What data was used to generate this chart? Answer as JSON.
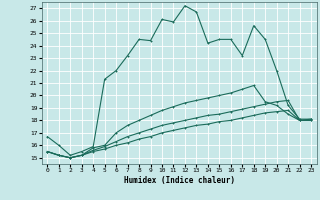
{
  "xlabel": "Humidex (Indice chaleur)",
  "bg_color": "#c8e8e8",
  "grid_color": "#ffffff",
  "line_color": "#1a6b5a",
  "xlim": [
    -0.5,
    23.5
  ],
  "ylim": [
    14.5,
    27.5
  ],
  "xticks": [
    0,
    1,
    2,
    3,
    4,
    5,
    6,
    7,
    8,
    9,
    10,
    11,
    12,
    13,
    14,
    15,
    16,
    17,
    18,
    19,
    20,
    21,
    22,
    23
  ],
  "yticks": [
    15,
    16,
    17,
    18,
    19,
    20,
    21,
    22,
    23,
    24,
    25,
    26,
    27
  ],
  "line1_y": [
    16.7,
    16.0,
    15.2,
    15.5,
    15.9,
    21.3,
    22.0,
    23.2,
    24.5,
    24.4,
    26.1,
    25.9,
    27.2,
    26.7,
    24.2,
    24.5,
    24.5,
    23.2,
    25.6,
    24.5,
    22.0,
    19.2,
    18.1,
    18.1
  ],
  "line2_y": [
    15.5,
    15.2,
    15.0,
    15.2,
    15.8,
    16.0,
    17.0,
    17.6,
    18.0,
    18.4,
    18.8,
    19.1,
    19.4,
    19.6,
    19.8,
    20.0,
    20.2,
    20.5,
    20.8,
    19.5,
    19.2,
    18.5,
    18.0,
    18.0
  ],
  "line3_y": [
    15.5,
    15.2,
    15.0,
    15.2,
    15.6,
    15.9,
    16.3,
    16.7,
    17.0,
    17.3,
    17.6,
    17.8,
    18.0,
    18.2,
    18.4,
    18.5,
    18.7,
    18.9,
    19.1,
    19.3,
    19.5,
    19.6,
    18.0,
    18.1
  ],
  "line4_y": [
    15.5,
    15.2,
    15.0,
    15.2,
    15.5,
    15.7,
    16.0,
    16.2,
    16.5,
    16.7,
    17.0,
    17.2,
    17.4,
    17.6,
    17.7,
    17.9,
    18.0,
    18.2,
    18.4,
    18.6,
    18.7,
    18.8,
    18.0,
    18.0
  ]
}
